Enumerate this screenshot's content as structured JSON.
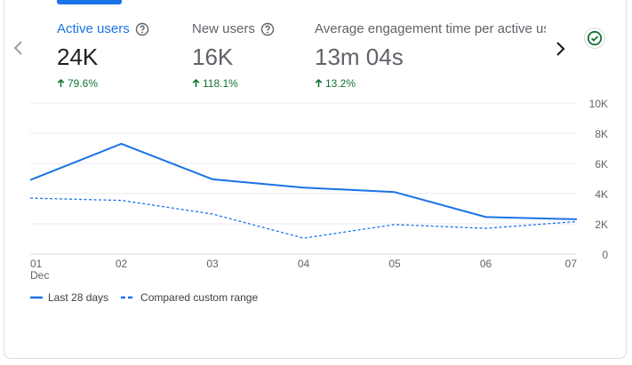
{
  "metrics": [
    {
      "label": "Active users",
      "value": "24K",
      "delta": "79.6%"
    },
    {
      "label": "New users",
      "value": "16K",
      "delta": "118.1%"
    },
    {
      "label": "Average engagement time per active user",
      "value": "13m 04s",
      "delta": "13.2%"
    }
  ],
  "icons": {
    "prev": "chevron-left-icon",
    "next": "chevron-right-icon",
    "status": "check-circle-icon",
    "help": "help-circle-icon",
    "delta": "arrow-up-icon"
  },
  "colors": {
    "accent": "#1a73e8",
    "positive": "#137333",
    "grid": "#e8eaed",
    "axisText": "#5f6368"
  },
  "chart_data": {
    "type": "line",
    "x": [
      "01",
      "02",
      "03",
      "04",
      "05",
      "06",
      "07"
    ],
    "x_sublabel": "Dec",
    "ylim": [
      0,
      10000
    ],
    "y_ticks": [
      "0",
      "2K",
      "4K",
      "6K",
      "8K",
      "10K"
    ],
    "series": [
      {
        "name": "Last 28 days",
        "style": "solid",
        "values": [
          4900,
          7300,
          4950,
          4400,
          4100,
          2450,
          2300
        ]
      },
      {
        "name": "Compared custom range",
        "style": "dashed",
        "values": [
          3700,
          3550,
          2650,
          1050,
          1950,
          1700,
          2150
        ]
      }
    ]
  },
  "legend": [
    {
      "label": "Last 28 days"
    },
    {
      "label": "Compared custom range"
    }
  ]
}
